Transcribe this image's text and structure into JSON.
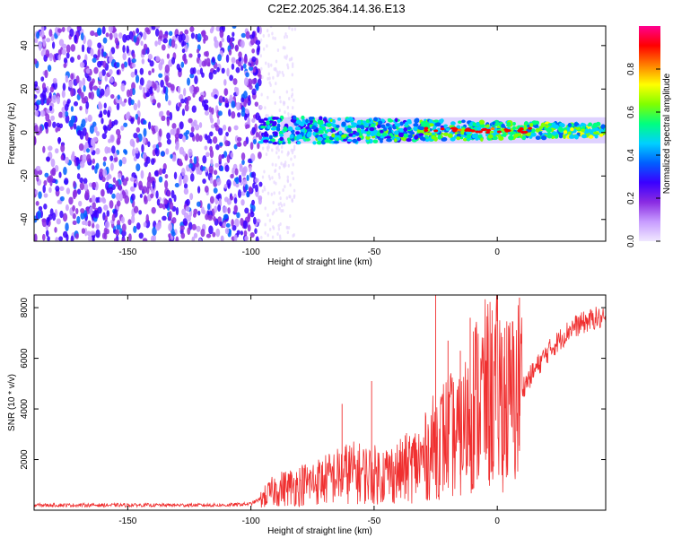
{
  "title": "C2E2.2025.364.14.36.E13",
  "chart_data": [
    {
      "type": "heatmap",
      "title": "C2E2.2025.364.14.36.E13",
      "xlabel": "Height of straight line (km)",
      "ylabel": "Frequency (Hz)",
      "xlim": [
        -188,
        44
      ],
      "ylim": [
        -50,
        49
      ],
      "xticks": [
        -150,
        -100,
        -50,
        0
      ],
      "yticks": [
        -40,
        -20,
        0,
        20,
        40
      ],
      "colorbar": {
        "label": "Normalized spectral amplitude",
        "range": [
          0.0,
          1.0
        ],
        "ticks": [
          0.0,
          0.2,
          0.4,
          0.6,
          0.8
        ],
        "colors": [
          "#f0e8ff",
          "#c79cff",
          "#8a2be2",
          "#3a00ff",
          "#0060ff",
          "#00d0ff",
          "#00ff80",
          "#80ff00",
          "#ffff00",
          "#ff8000",
          "#ff0000",
          "#ff0090"
        ]
      },
      "regions": [
        {
          "name": "noise",
          "x": [
            -188,
            -96
          ],
          "freq": [
            -50,
            49
          ],
          "amplitude": 0.15
        },
        {
          "name": "signal-band",
          "x": [
            -96,
            44
          ],
          "center_freq": 1,
          "half_width_hz": 4,
          "amplitude_start": 0.4,
          "amplitude_end": 0.55
        },
        {
          "name": "peaks",
          "x": [
            -30,
            15
          ],
          "center_freq": 1,
          "amplitude": 0.95
        }
      ]
    },
    {
      "type": "line",
      "xlabel": "Height of straight line (km)",
      "ylabel": "SNR (10 * v/v)",
      "xlim": [
        -188,
        44
      ],
      "ylim": [
        0,
        8500
      ],
      "xticks": [
        -150,
        -100,
        -50,
        0
      ],
      "yticks": [
        2000,
        4000,
        6000,
        8000
      ],
      "color": "#f03030",
      "series": [
        {
          "name": "SNR",
          "x": [
            -188,
            -150,
            -110,
            -100,
            -95,
            -90,
            -80,
            -70,
            -60,
            -50,
            -40,
            -30,
            -25,
            -20,
            -15,
            -10,
            -5,
            0,
            5,
            10,
            15,
            20,
            25,
            30,
            35,
            40,
            44
          ],
          "values": [
            200,
            200,
            200,
            250,
            500,
            800,
            1000,
            1200,
            1500,
            1400,
            1500,
            2000,
            2600,
            3000,
            2800,
            4200,
            4500,
            4700,
            4200,
            4800,
            5500,
            6200,
            6700,
            7200,
            7400,
            7600,
            7500
          ]
        }
      ],
      "spikes": [
        {
          "x": -51,
          "y": 5100
        },
        {
          "x": -63,
          "y": 4200
        },
        {
          "x": -25,
          "y": 8500
        },
        {
          "x": -20,
          "y": 6700
        },
        {
          "x": -15,
          "y": 6300
        },
        {
          "x": -11,
          "y": 7600
        },
        {
          "x": 9,
          "y": 8400
        },
        {
          "x": 3,
          "y": 7200
        }
      ]
    }
  ]
}
